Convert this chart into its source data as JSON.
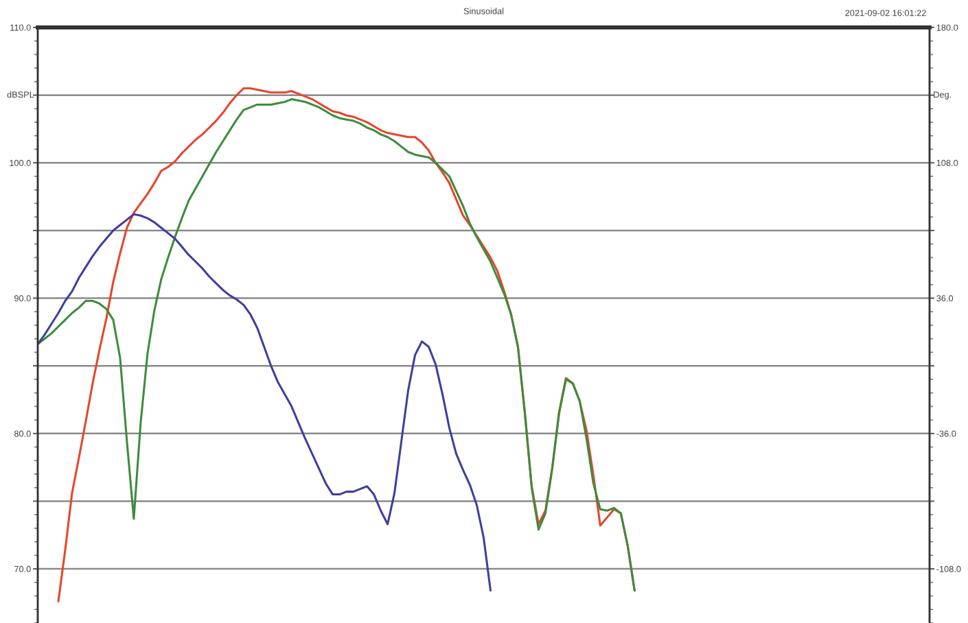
{
  "chart_data": {
    "type": "line",
    "title": "Sinusoidal",
    "annotations": [
      "2021-09-02 16:01:22"
    ],
    "ylabel": "dBSPL",
    "y2label": "Deg.",
    "categories": [
      null,
      null,
      null,
      null,
      null,
      null,
      null,
      null,
      null,
      null,
      null,
      null,
      null,
      null,
      null,
      null,
      null,
      null,
      null,
      null,
      null,
      null,
      null,
      null,
      null,
      null,
      null,
      null,
      null,
      null,
      null,
      null,
      null,
      null,
      null,
      null,
      null,
      null,
      null,
      null,
      null,
      null,
      null,
      null,
      null,
      null,
      null,
      null,
      null,
      null,
      null,
      null,
      null,
      null,
      null,
      null,
      null,
      null,
      null,
      null,
      null,
      null,
      null,
      null,
      null,
      null,
      null,
      null,
      null,
      null,
      null,
      null,
      null,
      null,
      null,
      null,
      null,
      null,
      null,
      null,
      null,
      null,
      null,
      null,
      null,
      null,
      null,
      null,
      null,
      null,
      null,
      null,
      null,
      null,
      null,
      null,
      null,
      null,
      null,
      null,
      null,
      null,
      null,
      null,
      null,
      null,
      null,
      null,
      null,
      null,
      null,
      null,
      null,
      null,
      null,
      null,
      null,
      null,
      null,
      null,
      null,
      null,
      null,
      null,
      null,
      null,
      null,
      null,
      null,
      null,
      null
    ],
    "series": [
      {
        "color": "#e8452b",
        "values": [
          null,
          null,
          null,
          67.6,
          71.4,
          75.6,
          78.2,
          80.9,
          83.7,
          86.2,
          88.5,
          91.2,
          93.3,
          95.2,
          96.3,
          97.0,
          97.7,
          98.5,
          99.4,
          99.7,
          100.1,
          100.7,
          101.2,
          101.7,
          102.1,
          102.6,
          103.1,
          103.7,
          104.4,
          105.0,
          105.5,
          105.5,
          105.4,
          105.3,
          105.2,
          105.2,
          105.2,
          105.3,
          105.1,
          104.9,
          104.7,
          104.4,
          104.1,
          103.8,
          103.7,
          103.5,
          103.4,
          103.2,
          103.0,
          102.7,
          102.4,
          102.2,
          102.1,
          102.0,
          101.9,
          101.9,
          101.5,
          100.9,
          100.0,
          99.3,
          98.5,
          97.3,
          96.1,
          95.4,
          94.6,
          93.8,
          93.0,
          92.0,
          90.5,
          88.8,
          86.4,
          81.5,
          76.1,
          73.3,
          74.3,
          77.5,
          81.6,
          84.1,
          83.7,
          82.4,
          80.2,
          76.9,
          73.2,
          73.8,
          74.4,
          74.1,
          71.7,
          68.4,
          null,
          null,
          null,
          null,
          null,
          null,
          null,
          null,
          null,
          null,
          null,
          null,
          null,
          null,
          null,
          null,
          null,
          null,
          null,
          null,
          null,
          null,
          null,
          null,
          null,
          null,
          null,
          null,
          null,
          null,
          null,
          null,
          null,
          null,
          null,
          null,
          null,
          null,
          null,
          null,
          null,
          null,
          null
        ]
      },
      {
        "color": "#3d8c3d",
        "values": [
          86.6,
          87.0,
          87.4,
          87.9,
          88.4,
          88.9,
          89.3,
          89.8,
          89.8,
          89.6,
          89.2,
          88.4,
          85.6,
          79.4,
          73.7,
          80.8,
          85.9,
          89.1,
          91.4,
          93.0,
          94.5,
          95.9,
          97.2,
          98.1,
          99.0,
          99.9,
          100.8,
          101.6,
          102.4,
          103.2,
          103.9,
          104.1,
          104.3,
          104.3,
          104.3,
          104.4,
          104.5,
          104.7,
          104.6,
          104.5,
          104.3,
          104.1,
          103.8,
          103.5,
          103.3,
          103.2,
          103.1,
          102.9,
          102.6,
          102.4,
          102.1,
          101.9,
          101.6,
          101.2,
          100.8,
          100.6,
          100.5,
          100.4,
          100.0,
          99.5,
          99.0,
          97.9,
          96.8,
          95.5,
          94.5,
          93.6,
          92.7,
          91.5,
          90.3,
          88.8,
          86.4,
          81.6,
          76.0,
          72.9,
          74.1,
          77.4,
          81.5,
          84.0,
          83.7,
          82.4,
          79.6,
          76.3,
          74.4,
          74.3,
          74.5,
          74.1,
          71.7,
          68.4,
          null,
          null,
          null,
          null,
          null,
          null,
          null,
          null,
          null,
          null,
          null,
          null,
          null,
          null,
          null,
          null,
          null,
          null,
          null,
          null,
          null,
          null,
          null,
          null,
          null,
          null,
          null,
          null,
          null,
          null,
          null,
          null,
          null,
          null,
          null,
          null,
          null,
          null,
          null,
          null,
          null,
          null,
          null
        ]
      },
      {
        "color": "#3f3f9e",
        "values": [
          86.6,
          87.3,
          88.1,
          88.9,
          89.8,
          90.5,
          91.5,
          92.3,
          93.1,
          93.8,
          94.4,
          95.0,
          95.4,
          95.8,
          96.2,
          96.1,
          95.9,
          95.6,
          95.2,
          94.8,
          94.4,
          93.8,
          93.2,
          92.7,
          92.2,
          91.6,
          91.1,
          90.6,
          90.2,
          89.9,
          89.5,
          88.8,
          87.8,
          86.4,
          85.0,
          83.8,
          82.9,
          82.0,
          80.8,
          79.6,
          78.5,
          77.4,
          76.3,
          75.5,
          75.5,
          75.7,
          75.7,
          75.9,
          76.1,
          75.5,
          74.3,
          73.3,
          75.6,
          79.4,
          83.2,
          85.8,
          86.8,
          86.4,
          85.1,
          82.9,
          80.4,
          78.5,
          77.3,
          76.2,
          74.7,
          72.3,
          68.4,
          null,
          null,
          null,
          null,
          null,
          null,
          null,
          null,
          null,
          null,
          null,
          null,
          null,
          null,
          null,
          null,
          null,
          null,
          null,
          null,
          null,
          null,
          null,
          null,
          null,
          null,
          null,
          null,
          null,
          null,
          null,
          null,
          null,
          null,
          null,
          null,
          null,
          null,
          null,
          null,
          null,
          null,
          null,
          null,
          null,
          null,
          null,
          null,
          null,
          null,
          null,
          null,
          null,
          null,
          null,
          null,
          null,
          null,
          null,
          null,
          null,
          null,
          null,
          null
        ]
      }
    ],
    "ylim": [
      66,
      110
    ],
    "yticks": [
      {
        "value": 70,
        "label": "70.0"
      },
      {
        "value": 75,
        "label": null
      },
      {
        "value": 80,
        "label": "80.0"
      },
      {
        "value": 85,
        "label": null
      },
      {
        "value": 90,
        "label": "90.0"
      },
      {
        "value": 95,
        "label": null
      },
      {
        "value": 100,
        "label": "100.0"
      },
      {
        "value": 105,
        "label": null
      },
      {
        "value": 110,
        "label": "110.0"
      }
    ],
    "y2lim": [
      -136.8,
      180
    ],
    "y2ticks": [
      {
        "value": -108,
        "label": "-108.0"
      },
      {
        "value": -72,
        "label": null
      },
      {
        "value": -36,
        "label": "-36.0"
      },
      {
        "value": 0,
        "label": null
      },
      {
        "value": 36,
        "label": "36.0"
      },
      {
        "value": 72,
        "label": null
      },
      {
        "value": 108,
        "label": "108.0"
      },
      {
        "value": 144,
        "label": null
      },
      {
        "value": 180,
        "label": "180.0"
      }
    ],
    "grid": "y"
  }
}
